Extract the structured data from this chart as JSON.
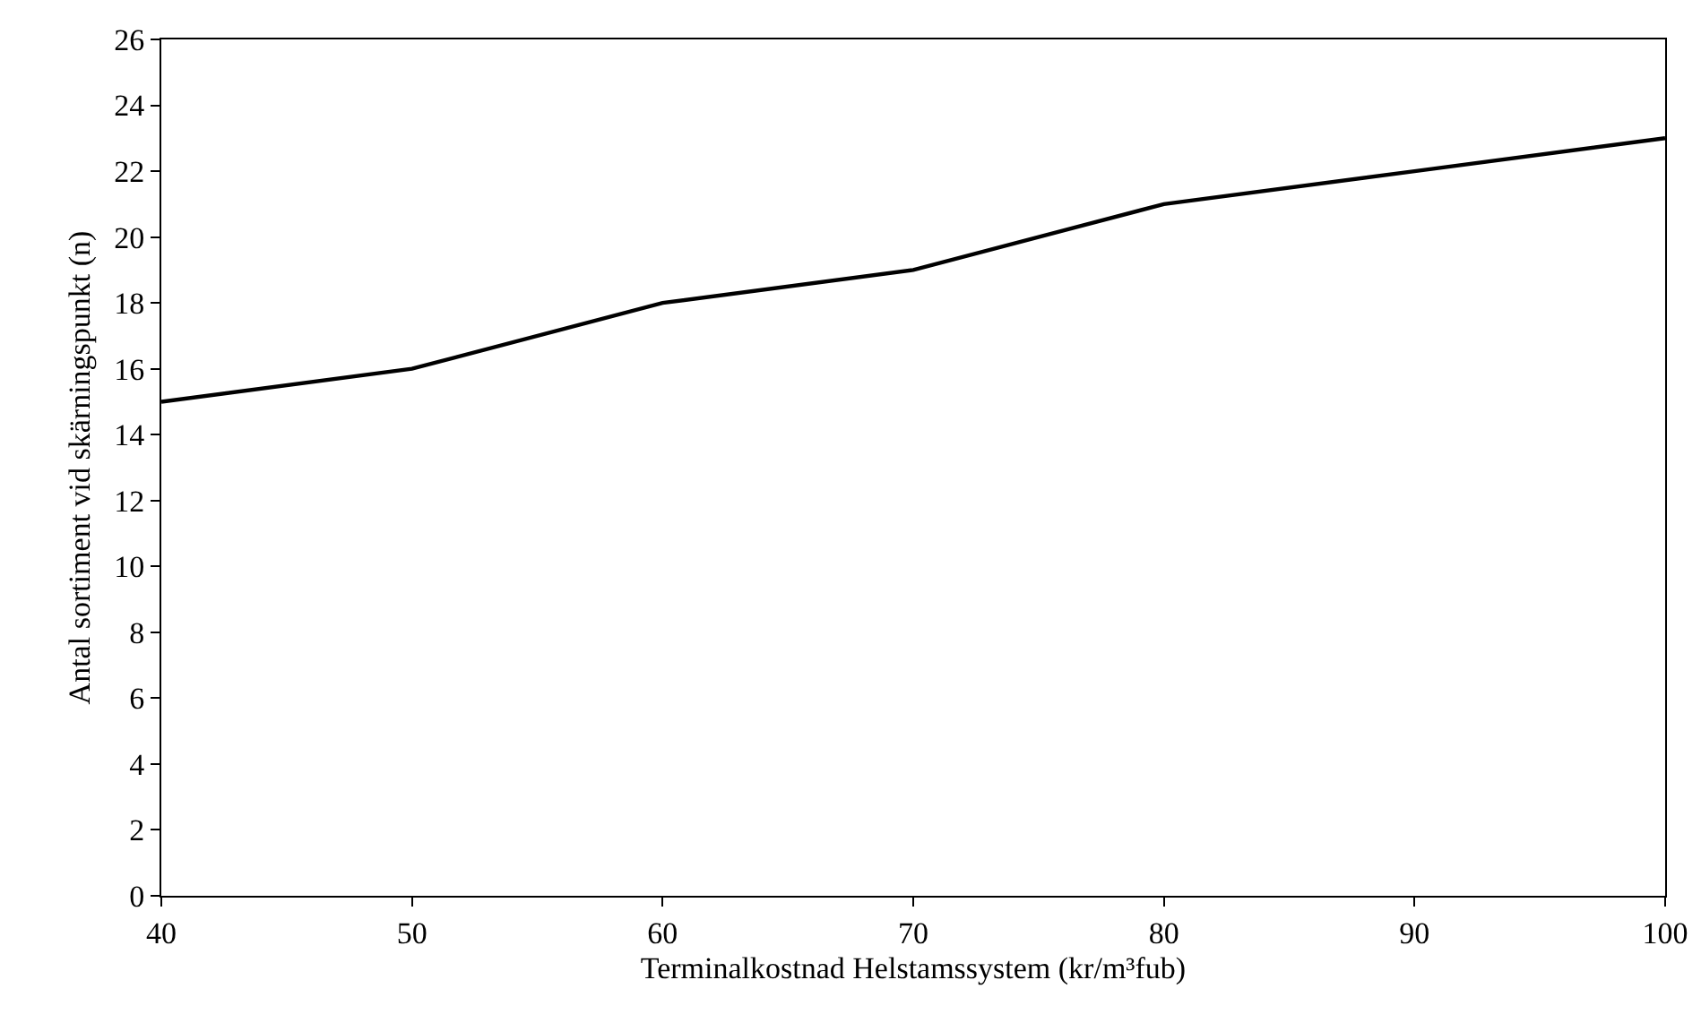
{
  "chart_data": {
    "type": "line",
    "xlabel": "Terminalkostnad Helstamssystem (kr/m³fub)",
    "ylabel": "Antal sortiment vid skärningspunkt (n)",
    "x": [
      40,
      50,
      60,
      70,
      80,
      90,
      100
    ],
    "series": [
      {
        "color": "#000000",
        "values": [
          15,
          16,
          18,
          19,
          21,
          22,
          23
        ]
      }
    ],
    "xlim": [
      40,
      100
    ],
    "xticks": [
      40,
      50,
      60,
      70,
      80,
      90,
      100
    ],
    "ylim": [
      0,
      26
    ],
    "yticks": [
      0,
      2,
      4,
      6,
      8,
      10,
      12,
      14,
      16,
      18,
      20,
      22,
      24,
      26
    ],
    "grid": false,
    "marker": "none",
    "line_style": "solid"
  }
}
